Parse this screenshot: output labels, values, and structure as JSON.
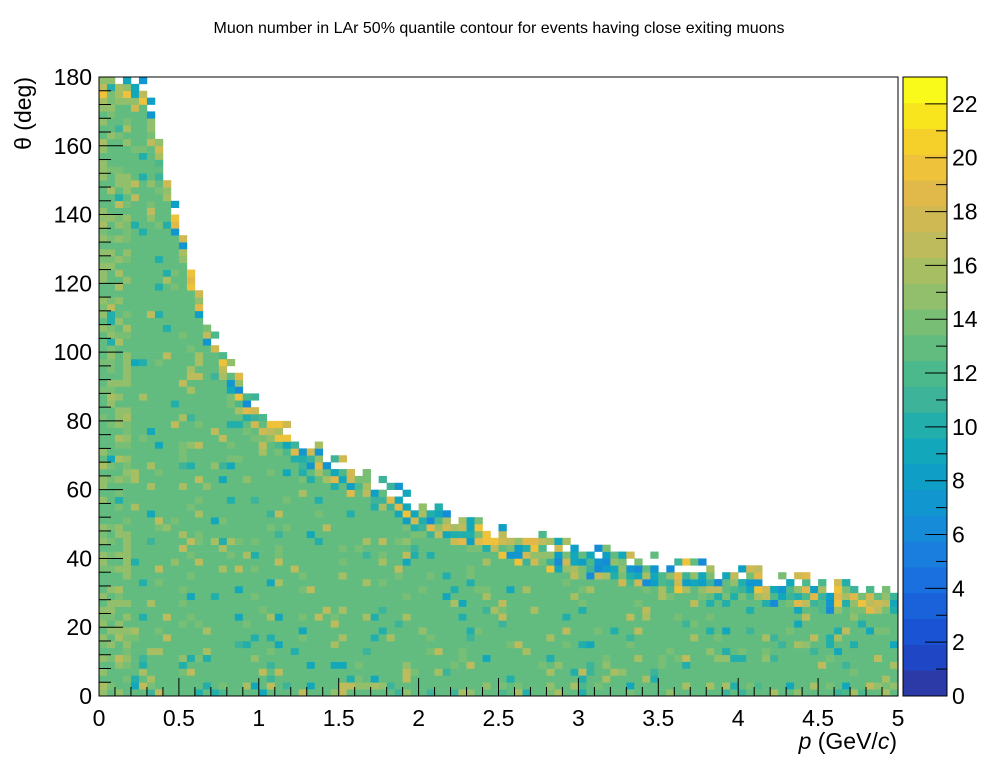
{
  "chart_data": {
    "type": "heatmap",
    "title": "Muon number in LAr 50% quantile contour for events having close exiting muons",
    "xlabel_var": "p",
    "xlabel_unit_open": " (GeV/",
    "xlabel_unit_var": "c",
    "xlabel_unit_close": ")",
    "ylabel": "θ (deg)",
    "xlim": [
      0,
      5
    ],
    "ylim": [
      0,
      180
    ],
    "zlim": [
      0,
      23
    ],
    "x_ticks": [
      {
        "v": 0,
        "label": "0"
      },
      {
        "v": 0.5,
        "label": "0.5"
      },
      {
        "v": 1,
        "label": "1"
      },
      {
        "v": 1.5,
        "label": "1.5"
      },
      {
        "v": 2,
        "label": "2"
      },
      {
        "v": 2.5,
        "label": "2.5"
      },
      {
        "v": 3,
        "label": "3"
      },
      {
        "v": 3.5,
        "label": "3.5"
      },
      {
        "v": 4,
        "label": "4"
      },
      {
        "v": 4.5,
        "label": "4.5"
      },
      {
        "v": 5,
        "label": "5"
      }
    ],
    "y_ticks": [
      {
        "v": 0,
        "label": "0"
      },
      {
        "v": 20,
        "label": "20"
      },
      {
        "v": 40,
        "label": "40"
      },
      {
        "v": 60,
        "label": "60"
      },
      {
        "v": 80,
        "label": "80"
      },
      {
        "v": 100,
        "label": "100"
      },
      {
        "v": 120,
        "label": "120"
      },
      {
        "v": 140,
        "label": "140"
      },
      {
        "v": 160,
        "label": "160"
      },
      {
        "v": 180,
        "label": "180"
      }
    ],
    "z_ticks": [
      {
        "v": 0,
        "label": "0"
      },
      {
        "v": 2,
        "label": "2"
      },
      {
        "v": 4,
        "label": "4"
      },
      {
        "v": 6,
        "label": "6"
      },
      {
        "v": 8,
        "label": "8"
      },
      {
        "v": 10,
        "label": "10"
      },
      {
        "v": 12,
        "label": "12"
      },
      {
        "v": 14,
        "label": "14"
      },
      {
        "v": 16,
        "label": "16"
      },
      {
        "v": 18,
        "label": "18"
      },
      {
        "v": 20,
        "label": "20"
      },
      {
        "v": 22,
        "label": "22"
      }
    ],
    "bins": {
      "nx": 100,
      "ny": 90
    },
    "typical_value": 13,
    "boundary": [
      [
        0.0,
        180
      ],
      [
        0.3,
        175
      ],
      [
        0.45,
        145
      ],
      [
        0.55,
        128
      ],
      [
        0.7,
        105
      ],
      [
        0.9,
        88
      ],
      [
        1.1,
        78
      ],
      [
        1.5,
        66
      ],
      [
        2.0,
        54
      ],
      [
        2.5,
        46
      ],
      [
        3.0,
        41
      ],
      [
        3.5,
        37
      ],
      [
        4.0,
        34
      ],
      [
        4.5,
        31
      ],
      [
        5.0,
        30
      ]
    ],
    "palette": [
      "#2b3aa7",
      "#1f46c4",
      "#1a54d4",
      "#1962da",
      "#1a70de",
      "#1a7ede",
      "#168cd8",
      "#1196cf",
      "#0f9ec5",
      "#13a7bb",
      "#22aeab",
      "#3db49a",
      "#4cb98d",
      "#62bc80",
      "#78bf75",
      "#92bf6b",
      "#a8be62",
      "#bdbb5b",
      "#cfb953",
      "#e0b94a",
      "#eec23b",
      "#f5cf2a",
      "#f8e51e",
      "#f9f91a"
    ]
  }
}
